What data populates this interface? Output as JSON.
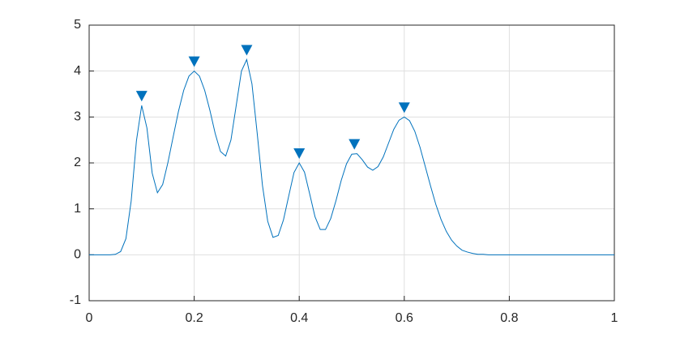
{
  "chart_data": {
    "type": "line",
    "grid": true,
    "xlim": [
      0,
      1
    ],
    "xticks": [
      0,
      0.2,
      0.4,
      0.6,
      0.8,
      1
    ],
    "ylim": [
      -1,
      5
    ],
    "yticks": [
      -1,
      0,
      1,
      2,
      3,
      4,
      5
    ],
    "series": [
      {
        "color": "#0072bd",
        "x": [
          0,
          0.01,
          0.02,
          0.03,
          0.04,
          0.05,
          0.06,
          0.07,
          0.08,
          0.09,
          0.1,
          0.11,
          0.12,
          0.13,
          0.14,
          0.15,
          0.16,
          0.17,
          0.18,
          0.19,
          0.2,
          0.21,
          0.22,
          0.23,
          0.24,
          0.25,
          0.26,
          0.27,
          0.28,
          0.29,
          0.3,
          0.31,
          0.32,
          0.33,
          0.34,
          0.35,
          0.36,
          0.37,
          0.38,
          0.39,
          0.4,
          0.41,
          0.42,
          0.43,
          0.44,
          0.45,
          0.46,
          0.47,
          0.48,
          0.49,
          0.5,
          0.51,
          0.52,
          0.53,
          0.54,
          0.55,
          0.56,
          0.57,
          0.58,
          0.59,
          0.6,
          0.61,
          0.62,
          0.63,
          0.64,
          0.65,
          0.66,
          0.67,
          0.68,
          0.69,
          0.7,
          0.71,
          0.72,
          0.73,
          0.74,
          0.75,
          0.76,
          0.77,
          0.78,
          0.79,
          0.8,
          0.81,
          0.82,
          0.83,
          0.84,
          0.85,
          0.86,
          0.87,
          0.88,
          0.89,
          0.9,
          0.91,
          0.92,
          0.93,
          0.94,
          0.95,
          0.96,
          0.97,
          0.98,
          0.99,
          1
        ],
        "values": [
          0,
          0,
          0,
          0,
          0,
          0.01,
          0.07,
          0.35,
          1.17,
          2.48,
          3.25,
          2.76,
          1.78,
          1.35,
          1.53,
          2.01,
          2.57,
          3.12,
          3.58,
          3.89,
          4,
          3.89,
          3.58,
          3.14,
          2.64,
          2.25,
          2.15,
          2.5,
          3.25,
          4,
          4.25,
          3.72,
          2.64,
          1.51,
          0.73,
          0.38,
          0.42,
          0.76,
          1.28,
          1.79,
          2,
          1.8,
          1.32,
          0.83,
          0.55,
          0.55,
          0.79,
          1.18,
          1.62,
          1.98,
          2.19,
          2.2,
          2.07,
          1.91,
          1.84,
          1.92,
          2.13,
          2.43,
          2.73,
          2.93,
          3,
          2.92,
          2.69,
          2.34,
          1.92,
          1.5,
          1.1,
          0.77,
          0.51,
          0.32,
          0.19,
          0.1,
          0.06,
          0.03,
          0.01,
          0.01,
          0,
          0,
          0,
          0,
          0,
          0,
          0,
          0,
          0,
          0,
          0,
          0,
          0,
          0,
          0,
          0,
          0,
          0,
          0,
          0,
          0,
          0,
          0,
          0,
          0
        ]
      },
      {
        "color": "#0072bd",
        "marker": "triangle-down",
        "x": [
          0.1,
          0.2,
          0.3,
          0.4,
          0.505,
          0.6
        ],
        "values": [
          3.25,
          4,
          4.25,
          2,
          2.2,
          3
        ]
      }
    ]
  }
}
